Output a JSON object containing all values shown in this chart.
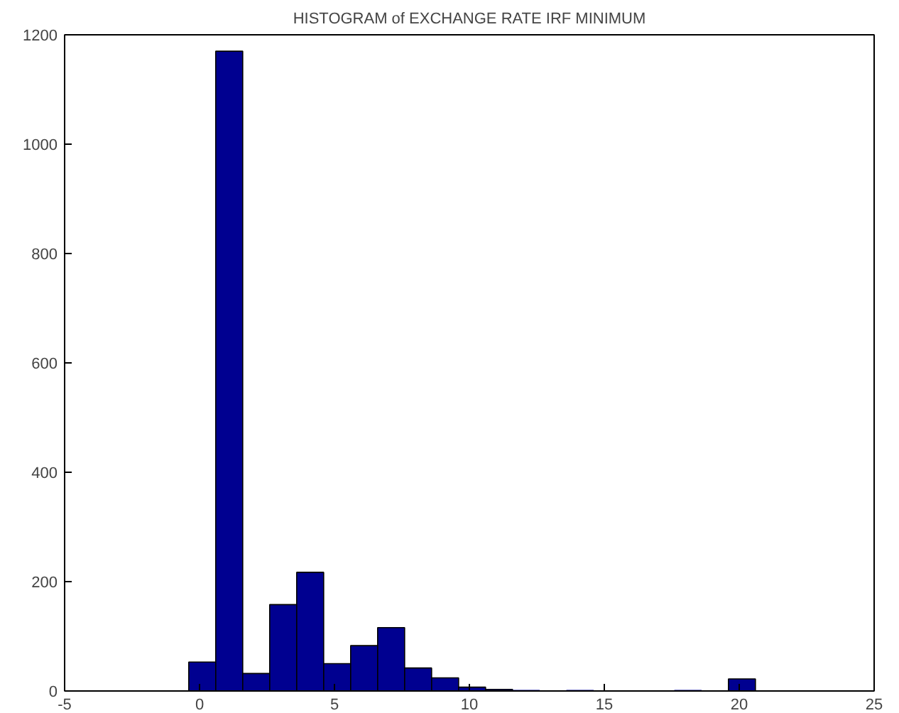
{
  "chart_data": {
    "type": "histogram",
    "title": "HISTOGRAM of EXCHANGE RATE IRF MINIMUM",
    "bins": [
      -0.4,
      0.6,
      1.6,
      2.6,
      3.6,
      4.6,
      5.6,
      6.6,
      7.6,
      8.6,
      9.6,
      10.6,
      11.6,
      12.6,
      13.6,
      14.6,
      15.6,
      16.6,
      17.6,
      18.6,
      19.6,
      20.6
    ],
    "values": [
      53,
      1170,
      32,
      158,
      217,
      50,
      83,
      116,
      42,
      24,
      7,
      3,
      1,
      0,
      1,
      0,
      0,
      0,
      1,
      0,
      22
    ],
    "color": "#000090",
    "xlim": [
      -5,
      25
    ],
    "xticks": [
      -5,
      0,
      5,
      10,
      15,
      20,
      25
    ],
    "ylim": [
      0,
      1200
    ],
    "yticks": [
      0,
      200,
      400,
      600,
      800,
      1000,
      1200
    ],
    "grid": false
  }
}
